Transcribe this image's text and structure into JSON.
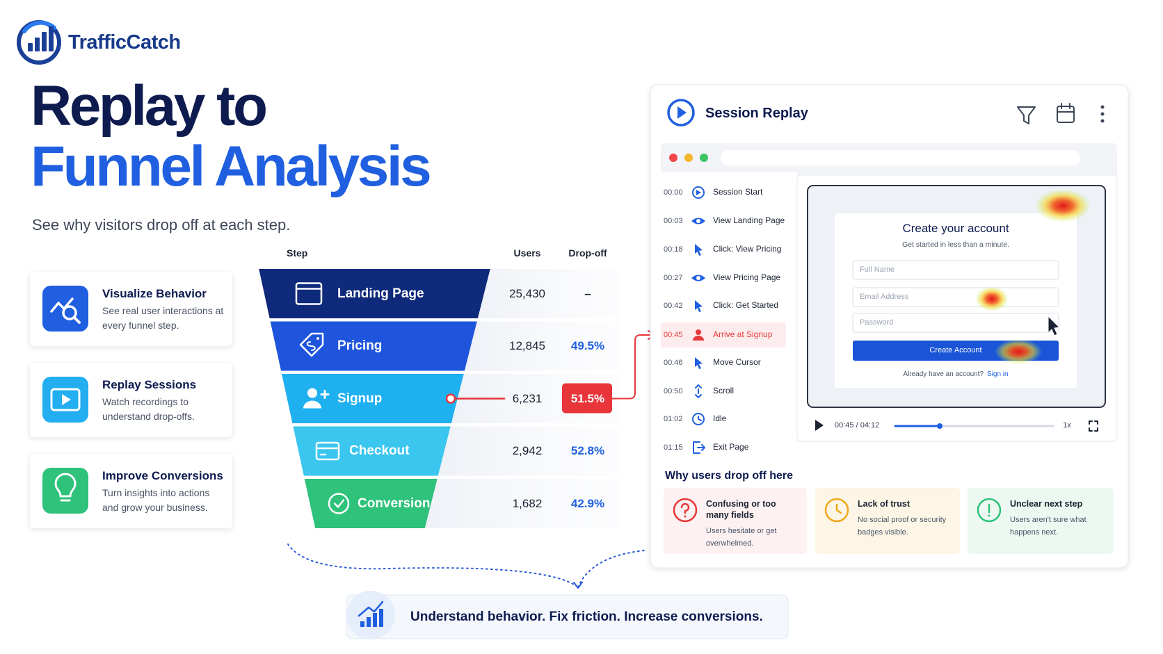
{
  "brand": "TrafficCatch",
  "headline": [
    "Replay to",
    "Funnel Analysis"
  ],
  "subtitle": "See why visitors drop off at each step.",
  "features": [
    {
      "title": "Visualize Behavior",
      "text": "See real user interactions at every funnel step."
    },
    {
      "title": "Replay Sessions",
      "text": "Watch recordings to understand drop-offs."
    },
    {
      "title": "Improve Conversions",
      "text": "Turn insights into actions and grow your business."
    }
  ],
  "funnel": {
    "columns": [
      "Step",
      "Users",
      "Drop-off"
    ],
    "rows": [
      [
        "Landing Page",
        "25,430",
        "–"
      ],
      [
        "Pricing",
        "12,845",
        "49.5%"
      ],
      [
        "Signup",
        "6,231",
        "51.5%"
      ],
      [
        "Checkout",
        "2,942",
        "52.8%"
      ],
      [
        "Conversion",
        "1,682",
        "42.9%"
      ]
    ]
  },
  "replay": {
    "title": "Session Replay",
    "events": [
      [
        "00:00",
        "Session Start"
      ],
      [
        "00:03",
        "View Landing Page"
      ],
      [
        "00:18",
        "Click: View Pricing"
      ],
      [
        "00:27",
        "View Pricing Page"
      ],
      [
        "00:42",
        "Click: Get Started"
      ],
      [
        "00:45",
        "Arrive at Signup"
      ],
      [
        "00:46",
        "Move Cursor"
      ],
      [
        "00:50",
        "Scroll"
      ],
      [
        "01:02",
        "Idle"
      ],
      [
        "01:15",
        "Exit Page"
      ]
    ],
    "form": {
      "title": "Create your account",
      "subtitle": "Get started in less than a minute.",
      "fields": [
        "Full Name",
        "Email Address",
        "Password"
      ],
      "button": "Create Account",
      "prompt": "Already have an account?",
      "link": "Sign in"
    },
    "player": {
      "time": "00:45 / 04:12",
      "speed": "1x"
    },
    "reasons_title": "Why users drop off here",
    "reasons": [
      {
        "title": "Confusing or too many fields",
        "text": "Users hesitate or get overwhelmed."
      },
      {
        "title": "Lack of trust",
        "text": "No social proof or security badges visible."
      },
      {
        "title": "Unclear next step",
        "text": "Users aren't sure what happens next."
      }
    ]
  },
  "tagline": "Understand behavior. Fix friction. Increase conversions."
}
